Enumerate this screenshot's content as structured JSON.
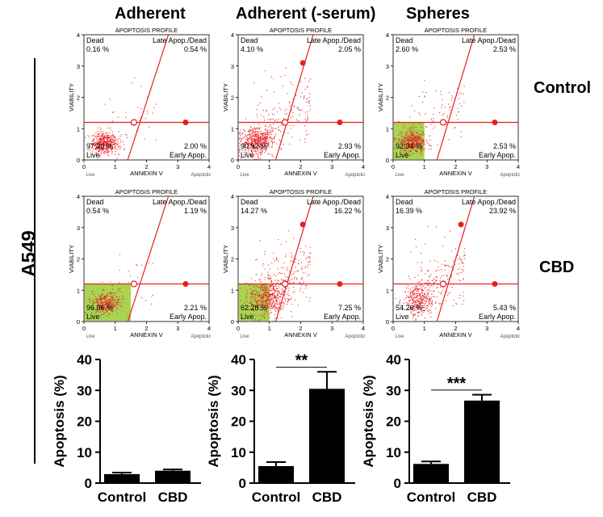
{
  "column_titles": [
    "Adherent",
    "Adherent (-serum)",
    "Spheres"
  ],
  "row_labels": [
    "Control",
    "CBD"
  ],
  "cell_line": "A549",
  "flow_plots": {
    "profile_title": "APOPTOSIS PROFILE",
    "x_label": "ANNEXIN V",
    "y_label": "VIABILITY",
    "x_ticks": [
      "0",
      "1",
      "2",
      "3",
      "4"
    ],
    "y_ticks": [
      "0",
      "1",
      "2",
      "3",
      "4"
    ],
    "x_live_tick": "Live",
    "x_apoptotic_tick": "Apoptotic",
    "quadrant_names": {
      "dead": "Dead",
      "late": "Late Apop./Dead",
      "live": "Live",
      "early": "Early Apop."
    },
    "plots": [
      {
        "row": "Control",
        "column": "Adherent",
        "dead": "0.16 %",
        "late": "0.54 %",
        "live": "97.30 %",
        "early": "2.00 %"
      },
      {
        "row": "Control",
        "column": "Adherent (-serum)",
        "dead": "4.10 %",
        "late": "2.05 %",
        "live": "90.92 %",
        "early": "2.93 %"
      },
      {
        "row": "Control",
        "column": "Spheres",
        "dead": "2.60 %",
        "late": "2.53 %",
        "live": "92.34 %",
        "early": "2.53 %"
      },
      {
        "row": "CBD",
        "column": "Adherent",
        "dead": "0.54 %",
        "late": "1.19 %",
        "live": "96.06 %",
        "early": "2.21 %"
      },
      {
        "row": "CBD",
        "column": "Adherent (-serum)",
        "dead": "14.27 %",
        "late": "16.22 %",
        "live": "62.28 %",
        "early": "7.25 %"
      },
      {
        "row": "CBD",
        "column": "Spheres",
        "dead": "16.39 %",
        "late": "23.92 %",
        "live": "54.26 %",
        "early": "5.43 %"
      }
    ]
  },
  "chart_data": [
    {
      "type": "bar",
      "title": "",
      "ylabel": "Apoptosis (%)",
      "xlabel": "",
      "categories": [
        "Control",
        "CBD"
      ],
      "values": [
        2.9,
        4.0
      ],
      "errors": [
        0.5,
        0.4
      ],
      "ylim": [
        0,
        40
      ],
      "yticks": [
        0,
        10,
        20,
        30,
        40
      ],
      "significance": "",
      "bar_color": "#000000",
      "grid": false
    },
    {
      "type": "bar",
      "title": "",
      "ylabel": "Apoptosis (%)",
      "xlabel": "",
      "categories": [
        "Control",
        "CBD"
      ],
      "values": [
        5.5,
        30.5
      ],
      "errors": [
        1.3,
        5.5
      ],
      "ylim": [
        0,
        40
      ],
      "yticks": [
        0,
        10,
        20,
        30,
        40
      ],
      "significance": "**",
      "bar_color": "#000000",
      "grid": false
    },
    {
      "type": "bar",
      "title": "",
      "ylabel": "Apoptosis (%)",
      "xlabel": "",
      "categories": [
        "Control",
        "CBD"
      ],
      "values": [
        6.2,
        26.7
      ],
      "errors": [
        0.8,
        1.9
      ],
      "ylim": [
        0,
        40
      ],
      "yticks": [
        0,
        10,
        20,
        30,
        40
      ],
      "significance": "***",
      "bar_color": "#000000",
      "grid": false
    }
  ],
  "colors": {
    "scatter_points": "#e8262a",
    "gate_lines": "#e4201f",
    "live_gate_fill": "#9acd32",
    "bars": "#000000"
  }
}
